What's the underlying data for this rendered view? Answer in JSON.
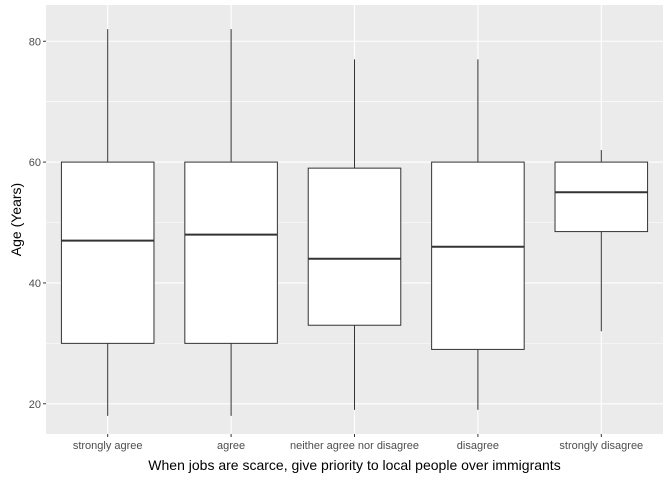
{
  "chart_data": {
    "type": "boxplot",
    "xlabel": "When jobs are scarce, give priority to local people over immigrants",
    "ylabel": "Age (Years)",
    "ylim": [
      15,
      86
    ],
    "yticks": [
      20,
      40,
      60,
      80
    ],
    "grid": true,
    "categories": [
      "strongly agree",
      "agree",
      "neither agree nor disagree",
      "disagree",
      "strongly disagree"
    ],
    "boxes": [
      {
        "category": "strongly agree",
        "min": 18,
        "q1": 30,
        "median": 47,
        "q3": 60,
        "max": 82
      },
      {
        "category": "agree",
        "min": 18,
        "q1": 30,
        "median": 48,
        "q3": 60,
        "max": 82
      },
      {
        "category": "neither agree nor disagree",
        "min": 19,
        "q1": 33,
        "median": 44,
        "q3": 59,
        "max": 77
      },
      {
        "category": "disagree",
        "min": 19,
        "q1": 29,
        "median": 46,
        "q3": 60,
        "max": 77
      },
      {
        "category": "strongly disagree",
        "min": 32,
        "q1": 48.5,
        "median": 55,
        "q3": 60,
        "max": 62
      }
    ],
    "colors": {
      "panel_background": "#ebebeb",
      "grid_major": "#ffffff",
      "box_fill": "#ffffff",
      "box_stroke": "#333333"
    }
  }
}
